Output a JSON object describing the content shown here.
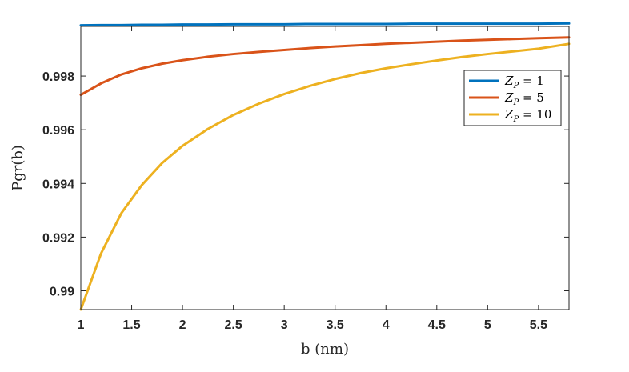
{
  "chart_data": {
    "type": "line",
    "xlabel": "b (nm)",
    "ylabel": "Pgr(b)",
    "xlim": [
      1,
      5.8
    ],
    "ylim": [
      0.9893,
      0.99985
    ],
    "xticks": [
      1,
      1.5,
      2,
      2.5,
      3,
      3.5,
      4,
      4.5,
      5,
      5.5
    ],
    "xtick_labels": [
      "1",
      "1.5",
      "2",
      "2.5",
      "3",
      "3.5",
      "4",
      "4.5",
      "5",
      "5.5"
    ],
    "yticks": [
      0.99,
      0.992,
      0.994,
      0.996,
      0.998
    ],
    "ytick_labels": [
      "0.99",
      "0.992",
      "0.994",
      "0.996",
      "0.998"
    ],
    "grid": false,
    "legend_position": "top-right",
    "x": [
      1,
      1.2,
      1.4,
      1.6,
      1.8,
      2,
      2.25,
      2.5,
      2.75,
      3,
      3.25,
      3.5,
      3.75,
      4,
      4.25,
      4.5,
      4.75,
      5,
      5.25,
      5.5,
      5.8
    ],
    "series": [
      {
        "name": "Z_P = 1",
        "legend_main": "Z",
        "legend_sub": "P",
        "legend_rest": " = 1",
        "color": "#0072BD",
        "values": [
          0.99989,
          0.9999,
          0.9999,
          0.99991,
          0.99991,
          0.99992,
          0.99992,
          0.99993,
          0.99993,
          0.99993,
          0.99994,
          0.99994,
          0.99994,
          0.99994,
          0.99995,
          0.99995,
          0.99995,
          0.99995,
          0.99995,
          0.99995,
          0.99996
        ]
      },
      {
        "name": "Z_P = 5",
        "legend_main": "Z",
        "legend_sub": "P",
        "legend_rest": " = 5",
        "color": "#D95319",
        "values": [
          0.9973,
          0.99773,
          0.99806,
          0.99829,
          0.99846,
          0.99859,
          0.99872,
          0.99882,
          0.9989,
          0.99897,
          0.99904,
          0.9991,
          0.99915,
          0.9992,
          0.99924,
          0.99928,
          0.99932,
          0.99935,
          0.99938,
          0.99941,
          0.99944
        ]
      },
      {
        "name": "Z_P = 10",
        "legend_main": "Z",
        "legend_sub": "P",
        "legend_rest": " = 10",
        "color": "#EDB120",
        "values": [
          0.9893,
          0.9914,
          0.9929,
          0.99394,
          0.99476,
          0.9954,
          0.99603,
          0.99655,
          0.99697,
          0.99733,
          0.99763,
          0.99789,
          0.99811,
          0.99829,
          0.99844,
          0.99858,
          0.99871,
          0.99882,
          0.99892,
          0.99902,
          0.9992
        ]
      }
    ]
  }
}
